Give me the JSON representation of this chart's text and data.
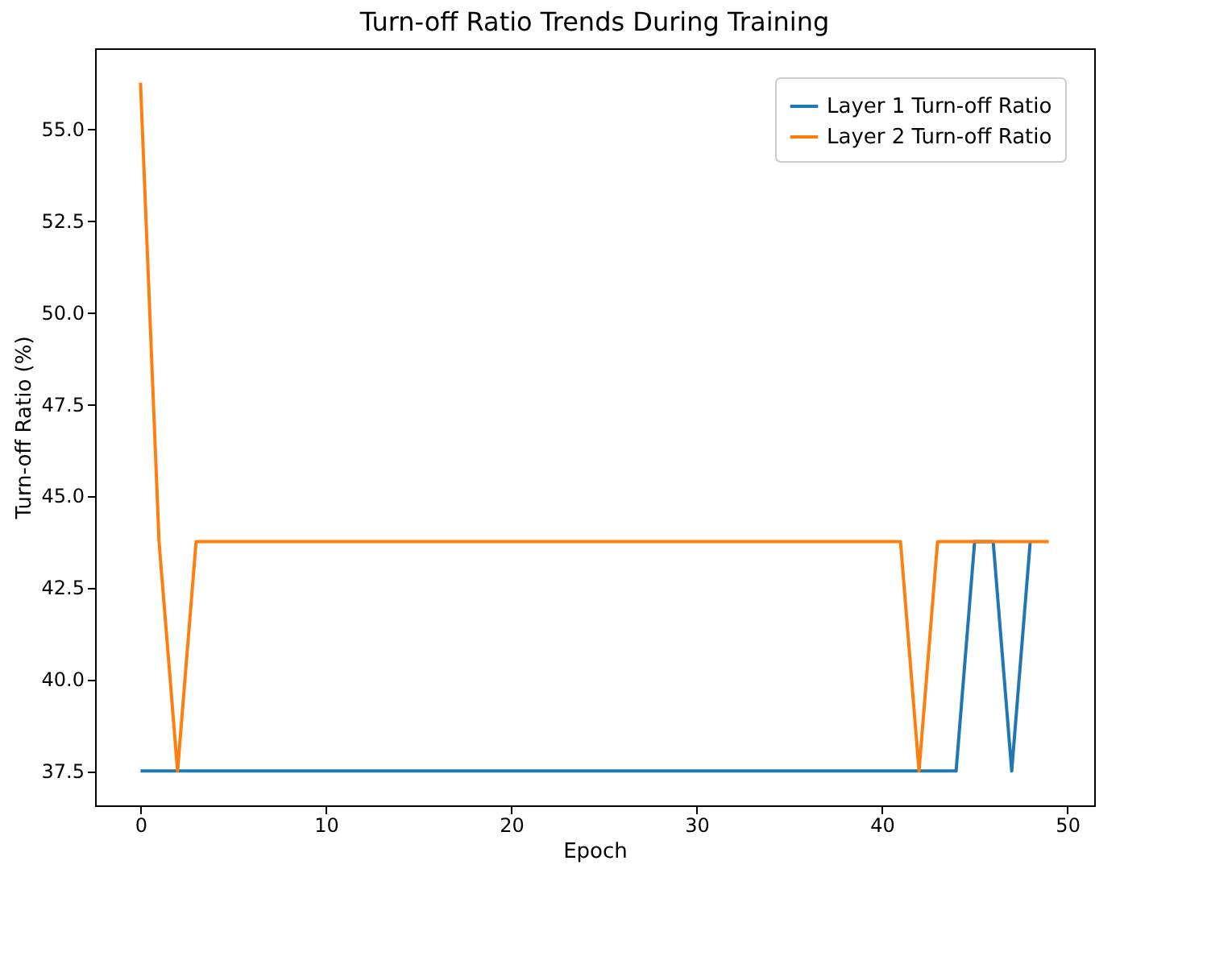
{
  "chart_data": {
    "type": "line",
    "title": "Turn-off Ratio Trends During Training",
    "xlabel": "Epoch",
    "ylabel": "Turn-off Ratio (%)",
    "x": [
      0,
      1,
      2,
      3,
      4,
      5,
      6,
      7,
      8,
      9,
      10,
      11,
      12,
      13,
      14,
      15,
      16,
      17,
      18,
      19,
      20,
      21,
      22,
      23,
      24,
      25,
      26,
      27,
      28,
      29,
      30,
      31,
      32,
      33,
      34,
      35,
      36,
      37,
      38,
      39,
      40,
      41,
      42,
      43,
      44,
      45,
      46,
      47,
      48,
      49
    ],
    "series": [
      {
        "name": "Layer 1 Turn-off Ratio",
        "color": "#1f77b4",
        "values": [
          37.5,
          37.5,
          37.5,
          37.5,
          37.5,
          37.5,
          37.5,
          37.5,
          37.5,
          37.5,
          37.5,
          37.5,
          37.5,
          37.5,
          37.5,
          37.5,
          37.5,
          37.5,
          37.5,
          37.5,
          37.5,
          37.5,
          37.5,
          37.5,
          37.5,
          37.5,
          37.5,
          37.5,
          37.5,
          37.5,
          37.5,
          37.5,
          37.5,
          37.5,
          37.5,
          37.5,
          37.5,
          37.5,
          37.5,
          37.5,
          37.5,
          37.5,
          37.5,
          37.5,
          37.5,
          43.75,
          43.75,
          37.5,
          43.75,
          null
        ]
      },
      {
        "name": "Layer 2 Turn-off Ratio",
        "color": "#ff7f0e",
        "values": [
          56.25,
          43.75,
          37.5,
          43.75,
          43.75,
          43.75,
          43.75,
          43.75,
          43.75,
          43.75,
          43.75,
          43.75,
          43.75,
          43.75,
          43.75,
          43.75,
          43.75,
          43.75,
          43.75,
          43.75,
          43.75,
          43.75,
          43.75,
          43.75,
          43.75,
          43.75,
          43.75,
          43.75,
          43.75,
          43.75,
          43.75,
          43.75,
          43.75,
          43.75,
          43.75,
          43.75,
          43.75,
          43.75,
          43.75,
          43.75,
          43.75,
          43.75,
          37.5,
          43.75,
          43.75,
          43.75,
          43.75,
          43.75,
          43.75,
          43.75
        ]
      }
    ],
    "xlim": [
      -2.45,
      51.45
    ],
    "xticks": [
      0,
      10,
      20,
      30,
      40,
      50
    ],
    "ylim": [
      36.5625,
      57.1875
    ],
    "yticks": [
      37.5,
      {
        "value": 40,
        "label": "40.0"
      },
      42.5,
      {
        "value": 45,
        "label": "45.0"
      },
      47.5,
      {
        "value": 50,
        "label": "50.0"
      },
      52.5,
      {
        "value": 55,
        "label": "55.0"
      }
    ],
    "legend": "top right",
    "grid": false
  }
}
